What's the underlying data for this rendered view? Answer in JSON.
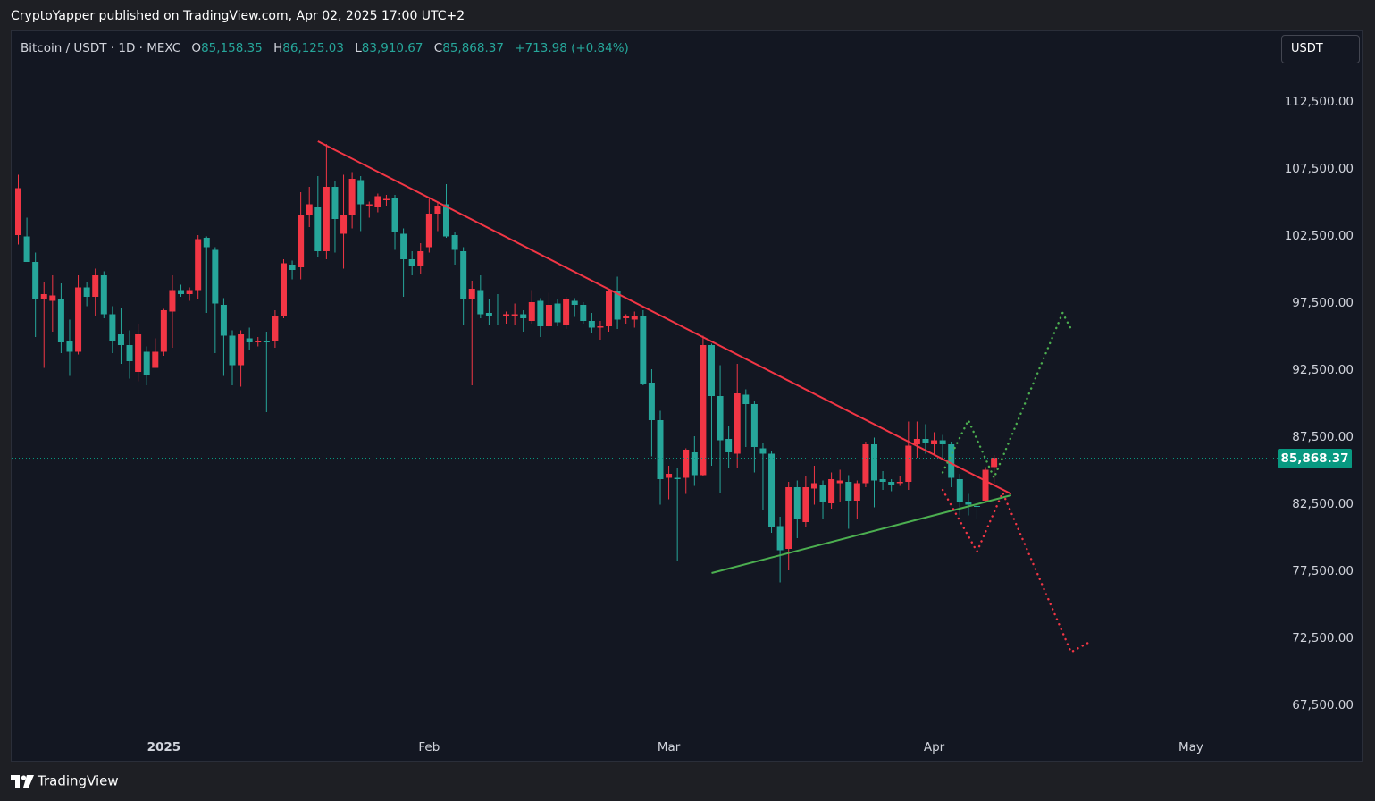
{
  "header": {
    "published_line": "CryptoYapper published on TradingView.com, Apr 02, 2025 17:00 UTC+2"
  },
  "legend": {
    "symbol": "Bitcoin / USDT · 1D · MEXC",
    "open_label": "O",
    "open": "85,158.35",
    "high_label": "H",
    "high": "86,125.03",
    "low_label": "L",
    "low": "83,910.67",
    "close_label": "C",
    "close": "85,868.37",
    "change": "+713.98 (+0.84%)"
  },
  "currency_button": "USDT",
  "last_price_tag": "85,868.37",
  "footer": {
    "brand": "TradingView",
    "logo_icon": "tradingview-logo-icon"
  },
  "colors": {
    "up": "#26a69a",
    "down": "#f23645",
    "resistance_line": "#f23645",
    "support_line": "#4caf50",
    "bull_path": "#4caf50",
    "bear_path": "#f23645",
    "last_price": "#089981"
  },
  "chart_data": {
    "type": "candlestick",
    "symbol": "BTC/USDT",
    "interval": "1D",
    "y_range": [
      66000,
      116000
    ],
    "y_ticks": [
      112500,
      107500,
      102500,
      97500,
      92500,
      87500,
      82500,
      77500,
      72500,
      67500
    ],
    "y_tick_labels": [
      "112,500.00",
      "107,500.00",
      "102,500.00",
      "97,500.00",
      "92,500.00",
      "87,500.00",
      "82,500.00",
      "77,500.00",
      "72,500.00",
      "67,500.00"
    ],
    "x_labels": [
      {
        "label": "2025",
        "date": "2025-01-01"
      },
      {
        "label": "Feb",
        "date": "2025-02-01"
      },
      {
        "label": "Mar",
        "date": "2025-03-01"
      },
      {
        "label": "Apr",
        "date": "2025-04-01"
      },
      {
        "label": "May",
        "date": "2025-05-01"
      }
    ],
    "first_date": "2024-12-15",
    "last_price": 85868.37,
    "candles": [
      [
        106000,
        102500,
        107000,
        101800
      ],
      [
        100500,
        102400,
        103800,
        101300
      ],
      [
        97700,
        100500,
        101200,
        94900
      ],
      [
        98100,
        97700,
        99000,
        92600
      ],
      [
        98000,
        97600,
        99500,
        95300
      ],
      [
        94500,
        97700,
        98900,
        93700
      ],
      [
        93800,
        94600,
        96200,
        92000
      ],
      [
        98600,
        93800,
        99500,
        93600
      ],
      [
        97900,
        98600,
        99000,
        97200
      ],
      [
        99500,
        97900,
        100000,
        96500
      ],
      [
        96600,
        99500,
        99800,
        96300
      ],
      [
        94600,
        96600,
        97200,
        93700
      ],
      [
        94300,
        95100,
        97100,
        92900
      ],
      [
        93100,
        94300,
        95400,
        91800
      ],
      [
        95100,
        92300,
        95900,
        91600
      ],
      [
        92100,
        93800,
        94200,
        91300
      ],
      [
        93800,
        92600,
        94800,
        92900
      ],
      [
        96900,
        93800,
        97000,
        93500
      ],
      [
        98400,
        96800,
        99500,
        94100
      ],
      [
        98100,
        98400,
        98800,
        97900
      ],
      [
        98400,
        98100,
        98600,
        97600
      ],
      [
        102200,
        98400,
        102500,
        97700
      ],
      [
        101600,
        102300,
        102400,
        96700
      ],
      [
        97400,
        101400,
        101600,
        93700
      ],
      [
        95000,
        97300,
        97800,
        92000
      ],
      [
        92800,
        95000,
        95400,
        91300
      ],
      [
        95100,
        92800,
        95400,
        91200
      ],
      [
        94500,
        94800,
        95600,
        93900
      ],
      [
        94600,
        94500,
        94900,
        94200
      ],
      [
        94500,
        94600,
        95300,
        89300
      ],
      [
        96500,
        94600,
        96900,
        94100
      ],
      [
        100400,
        96500,
        100700,
        96300
      ],
      [
        99900,
        100300,
        100600,
        99200
      ],
      [
        104000,
        100100,
        105700,
        99200
      ],
      [
        104800,
        104000,
        106100,
        103100
      ],
      [
        101300,
        104600,
        106900,
        100900
      ],
      [
        106100,
        101300,
        109300,
        100700
      ],
      [
        103700,
        106100,
        106500,
        101200
      ],
      [
        104000,
        102600,
        107000,
        100000
      ],
      [
        106700,
        104000,
        107200,
        103000
      ],
      [
        104800,
        106600,
        106900,
        102800
      ],
      [
        104800,
        104700,
        105000,
        103800
      ],
      [
        105400,
        104600,
        105600,
        104200
      ],
      [
        105200,
        105100,
        105500,
        104700
      ],
      [
        102700,
        105300,
        105500,
        101400
      ],
      [
        100700,
        102600,
        103000,
        97900
      ],
      [
        100200,
        100700,
        101300,
        99500
      ],
      [
        101300,
        100200,
        101900,
        99600
      ],
      [
        104100,
        101600,
        105200,
        101200
      ],
      [
        104700,
        104100,
        105000,
        102800
      ],
      [
        102400,
        104800,
        106300,
        102300
      ],
      [
        101400,
        102500,
        102700,
        100300
      ],
      [
        97700,
        101300,
        101600,
        95800
      ],
      [
        98500,
        97700,
        99100,
        91300
      ],
      [
        96600,
        98400,
        99500,
        96300
      ],
      [
        96500,
        96700,
        97700,
        95800
      ],
      [
        96500,
        96500,
        98100,
        95800
      ],
      [
        96600,
        96500,
        96800,
        95900
      ],
      [
        96600,
        96500,
        97400,
        95800
      ],
      [
        96300,
        96600,
        96900,
        95300
      ],
      [
        97500,
        96100,
        98400,
        95900
      ],
      [
        95700,
        97600,
        97800,
        94900
      ],
      [
        97300,
        95700,
        98200,
        95600
      ],
      [
        96000,
        97400,
        97700,
        95700
      ],
      [
        97700,
        95800,
        97900,
        95500
      ],
      [
        97300,
        97600,
        97800,
        96400
      ],
      [
        96100,
        97300,
        97500,
        95900
      ],
      [
        95600,
        96100,
        96700,
        95200
      ],
      [
        95700,
        95600,
        96100,
        94700
      ],
      [
        98300,
        95700,
        98500,
        95300
      ],
      [
        96200,
        98300,
        99400,
        95500
      ],
      [
        96500,
        96300,
        96600,
        95900
      ],
      [
        96500,
        96200,
        96800,
        95600
      ],
      [
        91400,
        96500,
        96900,
        91300
      ],
      [
        88700,
        91500,
        92500,
        86000
      ],
      [
        84300,
        88700,
        89400,
        82400
      ],
      [
        84700,
        84400,
        85300,
        82800
      ],
      [
        84300,
        84400,
        85100,
        78200
      ],
      [
        86500,
        84400,
        86600,
        83200
      ],
      [
        84600,
        86300,
        87500,
        83800
      ],
      [
        94300,
        84600,
        95000,
        84500
      ],
      [
        90500,
        94300,
        94400,
        85300
      ],
      [
        87200,
        90500,
        92800,
        83300
      ],
      [
        86300,
        87300,
        88300,
        85100
      ],
      [
        90700,
        86200,
        92900,
        85100
      ],
      [
        89900,
        90600,
        91000,
        86700
      ],
      [
        86700,
        89900,
        90100,
        84800
      ],
      [
        86200,
        86600,
        87000,
        82000
      ],
      [
        80700,
        86200,
        86400,
        80300
      ],
      [
        79000,
        80800,
        81500,
        76600
      ],
      [
        83700,
        79100,
        84100,
        77500
      ],
      [
        81300,
        83700,
        84200,
        79900
      ],
      [
        83700,
        81100,
        84500,
        80700
      ],
      [
        84000,
        83600,
        85300,
        82400
      ],
      [
        82600,
        83900,
        84200,
        81300
      ],
      [
        84300,
        82500,
        84800,
        82100
      ],
      [
        84200,
        84000,
        85000,
        82600
      ],
      [
        82700,
        84100,
        84600,
        80600
      ],
      [
        84000,
        82700,
        84200,
        81300
      ],
      [
        86900,
        84000,
        87100,
        83700
      ],
      [
        84200,
        86900,
        87400,
        82200
      ],
      [
        84100,
        84300,
        84900,
        83500
      ],
      [
        83900,
        84100,
        84300,
        83400
      ],
      [
        84100,
        84000,
        84500,
        83800
      ],
      [
        86800,
        84100,
        88600,
        83500
      ],
      [
        87300,
        86900,
        88600,
        85900
      ],
      [
        87000,
        87300,
        88400,
        86200
      ],
      [
        87200,
        86900,
        87800,
        86100
      ],
      [
        86900,
        87200,
        87600,
        85700
      ],
      [
        84400,
        86900,
        87100,
        83700
      ],
      [
        82600,
        84300,
        84700,
        81600
      ],
      [
        82400,
        82600,
        83200,
        81600
      ],
      [
        82300,
        82300,
        82700,
        81300
      ],
      [
        85000,
        82700,
        85200,
        82600
      ],
      [
        85900,
        85200,
        86100,
        83900
      ]
    ],
    "resistance_trendline": {
      "from": {
        "date": "2025-01-19",
        "price": 109500
      },
      "to": {
        "date": "2025-04-10",
        "price": 83200
      }
    },
    "support_trendline": {
      "from": {
        "date": "2025-03-06",
        "price": 77300
      },
      "to": {
        "date": "2025-04-10",
        "price": 83100
      }
    },
    "bullish_projection": [
      {
        "date": "2025-04-02",
        "price": 84800
      },
      {
        "date": "2025-04-05",
        "price": 88700
      },
      {
        "date": "2025-04-08",
        "price": 84400
      },
      {
        "date": "2025-04-16",
        "price": 96700
      },
      {
        "date": "2025-04-17",
        "price": 95500
      }
    ],
    "bearish_projection": [
      {
        "date": "2025-04-02",
        "price": 83500
      },
      {
        "date": "2025-04-06",
        "price": 78900
      },
      {
        "date": "2025-04-09",
        "price": 83300
      },
      {
        "date": "2025-04-17",
        "price": 71400
      },
      {
        "date": "2025-04-19",
        "price": 72100
      }
    ]
  }
}
